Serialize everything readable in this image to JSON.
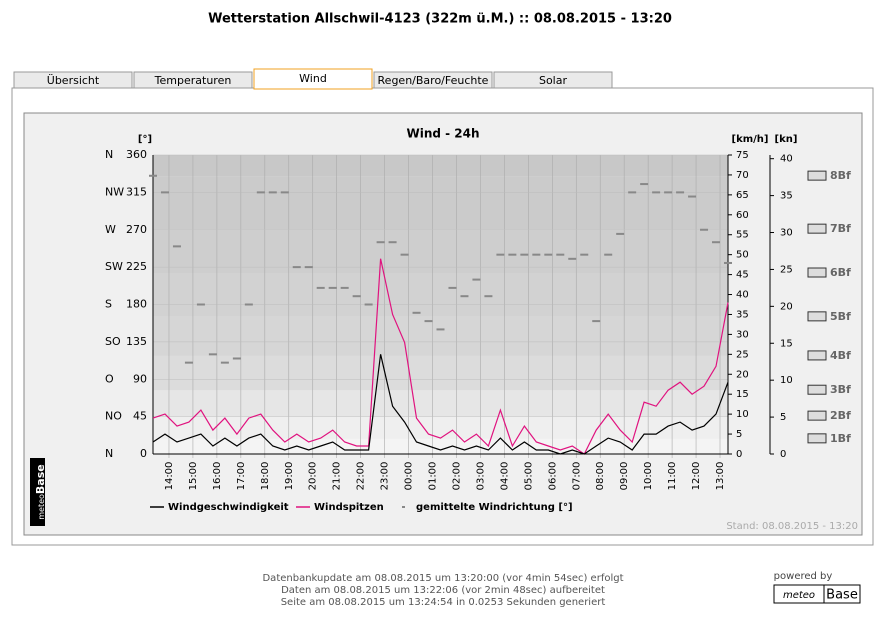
{
  "header": {
    "title": "Wetterstation Allschwil-4123 (322m ü.M.) :: 08.08.2015 - 13:20"
  },
  "tabs": [
    "Übersicht",
    "Temperaturen",
    "Wind",
    "Regen/Baro/Feuchte",
    "Solar"
  ],
  "chart_data": {
    "type": "line",
    "title": "Wind - 24h",
    "y_label": "[°]",
    "y2_label": "[km/h]",
    "y3_label": "[kn]",
    "ylim": [
      0,
      360
    ],
    "yticks": [
      0,
      45,
      90,
      135,
      180,
      225,
      270,
      315,
      360
    ],
    "compass": [
      "N",
      "NO",
      "O",
      "SO",
      "S",
      "SW",
      "W",
      "NW",
      "N"
    ],
    "y2lim": [
      0,
      75
    ],
    "y2ticks": [
      0,
      5,
      10,
      15,
      20,
      25,
      30,
      35,
      40,
      45,
      50,
      55,
      60,
      65,
      70,
      75
    ],
    "y3lim": [
      0,
      40.5
    ],
    "y3ticks": [
      0,
      5,
      10,
      15,
      20,
      25,
      30,
      35,
      40
    ],
    "beaufort": [
      {
        "value": 3.8,
        "label": "1Bf"
      },
      {
        "value": 9.5,
        "label": "2Bf"
      },
      {
        "value": 16,
        "label": "3Bf"
      },
      {
        "value": 24.6,
        "label": "4Bf"
      },
      {
        "value": 34.4,
        "label": "5Bf"
      },
      {
        "value": 45.4,
        "label": "6Bf"
      },
      {
        "value": 56.4,
        "label": "7Bf"
      },
      {
        "value": 69.7,
        "label": "8Bf"
      }
    ],
    "xticks": [
      "14:00",
      "15:00",
      "16:00",
      "17:00",
      "18:00",
      "19:00",
      "20:00",
      "21:00",
      "22:00",
      "23:00",
      "00:00",
      "01:00",
      "02:00",
      "03:00",
      "04:00",
      "05:00",
      "06:00",
      "07:00",
      "08:00",
      "09:00",
      "10:00",
      "11:00",
      "12:00",
      "13:00"
    ],
    "series": [
      {
        "name": "Windgeschwindigkeit",
        "color": "#000000",
        "axis": "y2",
        "values": [
          3,
          5,
          3,
          4,
          5,
          2,
          4,
          2,
          4,
          5,
          2,
          1,
          2,
          1,
          2,
          3,
          1,
          1,
          1,
          25,
          12,
          8,
          3,
          2,
          1,
          2,
          1,
          2,
          1,
          4,
          1,
          3,
          1,
          1,
          0,
          1,
          0,
          2,
          4,
          3,
          1,
          5,
          5,
          7,
          8,
          6,
          7,
          10,
          18
        ]
      },
      {
        "name": "Windspitzen",
        "color": "#e0137f",
        "axis": "y2",
        "values": [
          9,
          10,
          7,
          8,
          11,
          6,
          9,
          5,
          9,
          10,
          6,
          3,
          5,
          3,
          4,
          6,
          3,
          2,
          2,
          49,
          35,
          28,
          9,
          5,
          4,
          6,
          3,
          5,
          2,
          11,
          2,
          7,
          3,
          2,
          1,
          2,
          0,
          6,
          10,
          6,
          3,
          13,
          12,
          16,
          18,
          15,
          17,
          22,
          38
        ]
      },
      {
        "name": "gemittelte Windrichtung [°]",
        "color": "#888888",
        "axis": "y",
        "values": [
          335,
          315,
          250,
          110,
          180,
          120,
          110,
          115,
          180,
          315,
          315,
          315,
          225,
          225,
          200,
          200,
          200,
          190,
          180,
          255,
          255,
          240,
          170,
          160,
          150,
          200,
          190,
          210,
          190,
          240,
          240,
          240,
          240,
          240,
          240,
          235,
          240,
          160,
          240,
          265,
          315,
          325,
          315,
          315,
          315,
          310,
          270,
          255,
          230
        ]
      }
    ],
    "stand": "Stand: 08.08.2015 - 13:20",
    "logo_side": "meteo",
    "logo_text": "Base"
  },
  "footer": {
    "lines": [
      "Datenbankupdate am 08.08.2015 um 13:20:00 (vor 4min 54sec) erfolgt",
      "Daten am 08.08.2015 um 13:22:06 (vor 2min 48sec) aufbereitet",
      "Seite am 08.08.2015 um 13:24:54 in 0.0253 Sekunden generiert"
    ],
    "powered": "powered by",
    "logo_left": "meteo",
    "logo_right": "Base"
  }
}
